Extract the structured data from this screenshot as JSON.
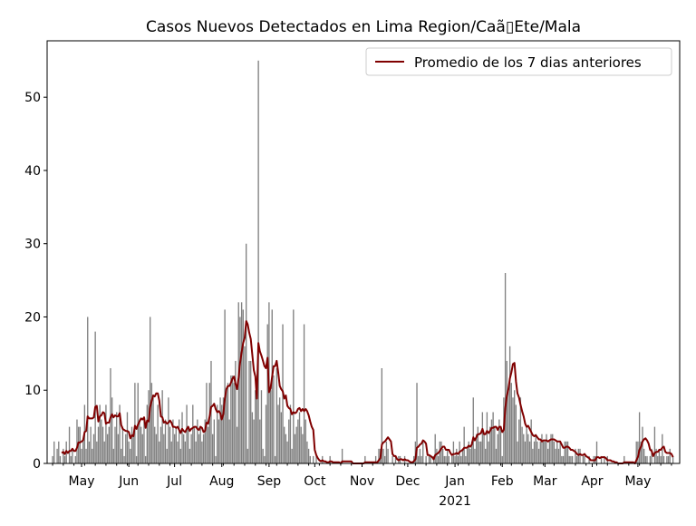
{
  "chart_data": {
    "type": "bar",
    "title": "Casos Nuevos Detectados en Lima Region/Caã▯Ete/Mala",
    "xlabel": "",
    "ylabel": "",
    "start_date": "2020-04-12",
    "xlim_days": [
      -3.6,
      411.4
    ],
    "ylim": [
      0,
      57.7
    ],
    "yticks": [
      0,
      10,
      20,
      30,
      40,
      50
    ],
    "xticks": [
      {
        "day": 19,
        "label": "May"
      },
      {
        "day": 50,
        "label": "Jun"
      },
      {
        "day": 80,
        "label": "Jul"
      },
      {
        "day": 111,
        "label": "Aug"
      },
      {
        "day": 142,
        "label": "Sep"
      },
      {
        "day": 172,
        "label": "Oct"
      },
      {
        "day": 203,
        "label": "Nov"
      },
      {
        "day": 233,
        "label": "Dec"
      },
      {
        "day": 264,
        "label": "Jan",
        "sublabel": "2021"
      },
      {
        "day": 295,
        "label": "Feb"
      },
      {
        "day": 323,
        "label": "Mar"
      },
      {
        "day": 354,
        "label": "Apr"
      },
      {
        "day": 384,
        "label": "May"
      }
    ],
    "bar_color": "#808080",
    "line_color": "#800000",
    "rolling_window": 7,
    "legend": {
      "label": "Promedio de los 7 dias anteriores",
      "placement": "upper right"
    },
    "values": [
      1,
      3,
      0,
      2,
      3,
      1,
      0,
      2,
      1,
      3,
      0,
      5,
      1,
      2,
      0,
      1,
      6,
      5,
      5,
      2,
      3,
      8,
      2,
      20,
      3,
      5,
      2,
      4,
      18,
      3,
      5,
      8,
      6,
      5,
      3,
      8,
      4,
      5,
      13,
      9,
      2,
      5,
      7,
      4,
      8,
      2,
      5,
      1,
      4,
      7,
      3,
      2,
      5,
      4,
      11,
      1,
      11,
      6,
      5,
      4,
      6,
      1,
      8,
      10,
      20,
      11,
      9,
      5,
      4,
      8,
      3,
      5,
      10,
      4,
      6,
      2,
      9,
      5,
      3,
      6,
      4,
      5,
      3,
      6,
      2,
      7,
      4,
      3,
      8,
      5,
      2,
      4,
      8,
      5,
      3,
      6,
      4,
      5,
      3,
      4,
      6,
      11,
      5,
      11,
      14,
      4,
      6,
      1,
      8,
      6,
      9,
      8,
      9,
      21,
      10,
      11,
      6,
      12,
      12,
      11,
      14,
      5,
      22,
      20,
      22,
      21,
      16,
      30,
      2,
      14,
      14,
      7,
      6,
      10,
      9,
      55,
      6,
      10,
      2,
      1,
      8,
      19,
      22,
      10,
      21,
      12,
      1,
      13,
      8,
      9,
      7,
      19,
      5,
      4,
      3,
      6,
      8,
      2,
      21,
      4,
      5,
      6,
      7,
      5,
      4,
      19,
      6,
      3,
      2,
      1,
      0,
      1,
      0,
      1,
      0,
      0,
      0,
      1,
      0,
      0,
      0,
      0,
      1,
      0,
      0,
      0,
      0,
      0,
      0,
      0,
      2,
      0,
      0,
      0,
      0,
      0,
      0,
      0,
      0,
      0,
      0,
      0,
      0,
      0,
      0,
      1,
      0,
      0,
      0,
      0,
      0,
      0,
      1,
      0,
      2,
      2,
      13,
      2,
      1,
      3,
      2,
      0,
      0,
      1,
      0,
      1,
      0,
      1,
      1,
      0,
      0,
      1,
      0,
      0,
      0,
      0,
      0,
      1,
      3,
      11,
      1,
      2,
      1,
      3,
      0,
      1,
      0,
      1,
      1,
      0,
      1,
      4,
      2,
      1,
      3,
      3,
      2,
      1,
      1,
      2,
      1,
      0,
      1,
      3,
      1,
      2,
      1,
      3,
      1,
      2,
      5,
      1,
      2,
      3,
      2,
      3,
      9,
      2,
      4,
      5,
      3,
      3,
      7,
      4,
      2,
      7,
      3,
      5,
      6,
      7,
      5,
      2,
      4,
      6,
      5,
      1,
      9,
      26,
      14,
      10,
      16,
      11,
      9,
      10,
      8,
      3,
      6,
      9,
      5,
      4,
      3,
      5,
      4,
      3,
      6,
      2,
      3,
      4,
      3,
      2,
      3,
      4,
      3,
      3,
      4,
      2,
      3,
      4,
      4,
      3,
      2,
      3,
      2,
      3,
      1,
      1,
      3,
      3,
      3,
      1,
      1,
      1,
      0,
      2,
      1,
      2,
      2,
      0,
      1,
      1,
      0,
      0,
      1,
      0,
      0,
      1,
      1,
      3,
      0,
      0,
      1,
      0,
      1,
      0,
      1,
      0,
      0,
      0,
      0,
      0,
      0,
      0,
      0,
      0,
      0,
      1,
      0,
      0,
      0,
      0,
      0,
      0,
      0,
      3,
      3,
      7,
      3,
      5,
      2,
      1,
      1,
      0,
      1,
      2,
      0,
      5,
      2,
      1,
      2,
      1,
      4,
      1,
      0,
      1,
      1,
      2,
      0,
      1
    ]
  }
}
